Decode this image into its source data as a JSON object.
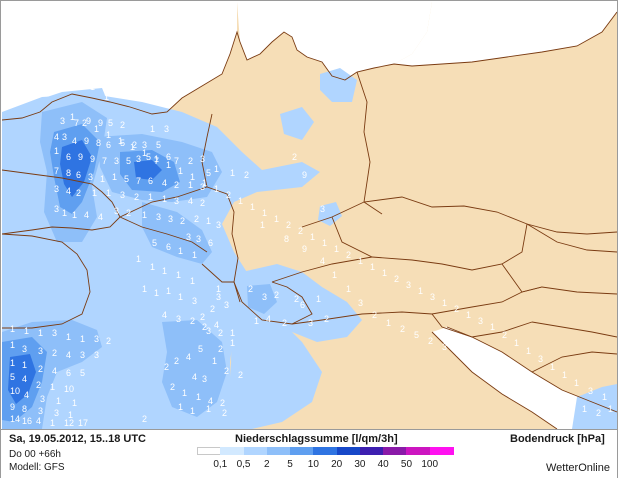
{
  "header": {
    "datetime": "Sa, 19.05.2012, 15..18 UTC",
    "run": "Do 00 +66h",
    "model": "Modell: GFS",
    "title": "Niederschlagssumme [l/qm/3h]",
    "right_title": "Bodendruck [hPa]",
    "brand": "WetterOnline"
  },
  "legend": {
    "values": [
      "0,1",
      "0,5",
      "2",
      "5",
      "10",
      "20",
      "30",
      "40",
      "50",
      "100"
    ],
    "colors": [
      "#ffffff",
      "#d2e9ff",
      "#b0d5ff",
      "#8ebff9",
      "#5f9ff0",
      "#2f74e2",
      "#1748c8",
      "#3d1fb0",
      "#8a1aa8",
      "#cc15c0",
      "#ff11f0"
    ]
  },
  "map": {
    "colors": {
      "land": "#f6deb7",
      "sea": "#ffffff",
      "border": "#7a3b12"
    },
    "values": [
      {
        "v": "1"
      },
      {
        "v": "1"
      },
      {
        "v": "3"
      },
      {
        "v": "7"
      },
      {
        "v": "9"
      },
      {
        "v": "9"
      },
      {
        "v": "5"
      },
      {
        "v": "2"
      },
      {
        "v": "1"
      },
      {
        "v": "3"
      },
      {
        "v": "4"
      },
      {
        "v": "3"
      },
      {
        "v": "4"
      },
      {
        "v": "9"
      },
      {
        "v": "8"
      },
      {
        "v": "6"
      },
      {
        "v": "5"
      },
      {
        "v": "2"
      },
      {
        "v": "3"
      },
      {
        "v": "5"
      },
      {
        "v": "1"
      },
      {
        "v": "6"
      },
      {
        "v": "9"
      },
      {
        "v": "9"
      },
      {
        "v": "7"
      },
      {
        "v": "3"
      },
      {
        "v": "5"
      },
      {
        "v": "3"
      },
      {
        "v": "5"
      },
      {
        "v": "7"
      },
      {
        "v": "6"
      },
      {
        "v": "7"
      },
      {
        "v": "2"
      },
      {
        "v": "3"
      },
      {
        "v": "7"
      },
      {
        "v": "8"
      },
      {
        "v": "6"
      },
      {
        "v": "3"
      },
      {
        "v": "1"
      },
      {
        "v": "1"
      },
      {
        "v": "5"
      },
      {
        "v": "7"
      },
      {
        "v": "6"
      },
      {
        "v": "4"
      },
      {
        "v": "2"
      },
      {
        "v": "1"
      },
      {
        "v": "3"
      },
      {
        "v": "3"
      },
      {
        "v": "4"
      },
      {
        "v": "2"
      },
      {
        "v": "1"
      },
      {
        "v": "1"
      },
      {
        "v": "3"
      },
      {
        "v": "2"
      },
      {
        "v": "1"
      },
      {
        "v": "1"
      },
      {
        "v": "3"
      },
      {
        "v": "4"
      },
      {
        "v": "2"
      },
      {
        "v": "3"
      },
      {
        "v": "1"
      },
      {
        "v": "1"
      },
      {
        "v": "4"
      },
      {
        "v": "4"
      },
      {
        "v": "3"
      },
      {
        "v": "2"
      },
      {
        "v": "1"
      },
      {
        "v": "3"
      },
      {
        "v": "3"
      },
      {
        "v": "2"
      },
      {
        "v": "2"
      },
      {
        "v": "1"
      },
      {
        "v": "3"
      },
      {
        "v": "1"
      },
      {
        "v": "2"
      },
      {
        "v": "2"
      },
      {
        "v": "5"
      },
      {
        "v": "1"
      },
      {
        "v": "3"
      },
      {
        "v": "3"
      },
      {
        "v": "6"
      },
      {
        "v": "5"
      },
      {
        "v": "6"
      },
      {
        "v": "1"
      },
      {
        "v": "1"
      },
      {
        "v": "1"
      },
      {
        "v": "1"
      },
      {
        "v": "1"
      },
      {
        "v": "1"
      },
      {
        "v": "1"
      },
      {
        "v": "1"
      },
      {
        "v": "1"
      },
      {
        "v": "1"
      },
      {
        "v": "1"
      },
      {
        "v": "3"
      },
      {
        "v": "1"
      },
      {
        "v": "3"
      },
      {
        "v": "2"
      },
      {
        "v": "3"
      },
      {
        "v": "2"
      },
      {
        "v": "2"
      },
      {
        "v": "6"
      },
      {
        "v": "1"
      },
      {
        "v": "2"
      },
      {
        "v": "3"
      },
      {
        "v": "2"
      },
      {
        "v": "1"
      },
      {
        "v": "4"
      },
      {
        "v": "3"
      },
      {
        "v": "2"
      },
      {
        "v": "1"
      },
      {
        "v": "2"
      },
      {
        "v": "2"
      },
      {
        "v": "3"
      },
      {
        "v": "4"
      },
      {
        "v": "3"
      },
      {
        "v": "2"
      },
      {
        "v": "2"
      },
      {
        "v": "4"
      },
      {
        "v": "1"
      },
      {
        "v": "2"
      },
      {
        "v": "5"
      },
      {
        "v": "4"
      },
      {
        "v": "2"
      },
      {
        "v": "2"
      },
      {
        "v": "1"
      },
      {
        "v": "2"
      },
      {
        "v": "2"
      },
      {
        "v": "4"
      },
      {
        "v": "3"
      },
      {
        "v": "2"
      },
      {
        "v": "1"
      },
      {
        "v": "1"
      },
      {
        "v": "4"
      },
      {
        "v": "2"
      },
      {
        "v": "1"
      },
      {
        "v": "1"
      },
      {
        "v": "1"
      },
      {
        "v": "2"
      },
      {
        "v": "2"
      },
      {
        "v": "1"
      },
      {
        "v": "1"
      },
      {
        "v": "1"
      },
      {
        "v": "3"
      },
      {
        "v": "1"
      },
      {
        "v": "1"
      },
      {
        "v": "3"
      },
      {
        "v": "2"
      },
      {
        "v": "1"
      },
      {
        "v": "3"
      },
      {
        "v": "3"
      },
      {
        "v": "2"
      },
      {
        "v": "4"
      },
      {
        "v": "3"
      },
      {
        "v": "3"
      },
      {
        "v": "1"
      },
      {
        "v": "1"
      },
      {
        "v": "2"
      },
      {
        "v": "4"
      },
      {
        "v": "6"
      },
      {
        "v": "5"
      },
      {
        "v": "5"
      },
      {
        "v": "4"
      },
      {
        "v": "2"
      },
      {
        "v": "1"
      },
      {
        "v": "10"
      },
      {
        "v": "10"
      },
      {
        "v": "4"
      },
      {
        "v": "3"
      },
      {
        "v": "1"
      },
      {
        "v": "1"
      },
      {
        "v": "9"
      },
      {
        "v": "8"
      },
      {
        "v": "3"
      },
      {
        "v": "3"
      },
      {
        "v": "1"
      },
      {
        "v": "14"
      },
      {
        "v": "16"
      },
      {
        "v": "4"
      },
      {
        "v": "1"
      },
      {
        "v": "12"
      },
      {
        "v": "17"
      },
      {
        "v": "9"
      },
      {
        "v": "3"
      },
      {
        "v": "1"
      },
      {
        "v": "8"
      },
      {
        "v": "9"
      },
      {
        "v": "4"
      },
      {
        "v": "1"
      },
      {
        "v": "1"
      },
      {
        "v": "3"
      },
      {
        "v": "2"
      },
      {
        "v": "1"
      },
      {
        "v": "2"
      },
      {
        "v": "5"
      },
      {
        "v": "2"
      },
      {
        "v": "3"
      },
      {
        "v": "2"
      },
      {
        "v": "2"
      },
      {
        "v": "1"
      },
      {
        "v": "1"
      },
      {
        "v": "2"
      },
      {
        "v": "4"
      },
      {
        "v": "3"
      },
      {
        "v": "2"
      },
      {
        "v": "2"
      },
      {
        "v": "1"
      },
      {
        "v": "2"
      },
      {
        "v": "1"
      },
      {
        "v": "1"
      },
      {
        "v": "3"
      },
      {
        "v": "1"
      },
      {
        "v": "1"
      },
      {
        "v": "1"
      },
      {
        "v": "3"
      },
      {
        "v": "1"
      },
      {
        "v": "1"
      },
      {
        "v": "2"
      },
      {
        "v": "1"
      },
      {
        "v": "3"
      },
      {
        "v": "1"
      },
      {
        "v": "2"
      },
      {
        "v": "1"
      },
      {
        "v": "3"
      },
      {
        "v": "1"
      },
      {
        "v": "3"
      },
      {
        "v": "2"
      },
      {
        "v": "1"
      },
      {
        "v": "1"
      },
      {
        "v": "1"
      },
      {
        "v": "2"
      },
      {
        "v": "1"
      },
      {
        "v": "1"
      },
      {
        "v": "1"
      },
      {
        "v": "2"
      },
      {
        "v": "2"
      },
      {
        "v": "1"
      },
      {
        "v": "1"
      },
      {
        "v": "1"
      },
      {
        "v": "1"
      },
      {
        "v": "2"
      },
      {
        "v": "1"
      },
      {
        "v": "1"
      },
      {
        "v": "1"
      },
      {
        "v": "1"
      },
      {
        "v": "1"
      },
      {
        "v": "1"
      },
      {
        "v": "1"
      },
      {
        "v": "1"
      },
      {
        "v": "1"
      },
      {
        "v": "1"
      },
      {
        "v": "1"
      },
      {
        "v": "2"
      },
      {
        "v": "1"
      }
    ]
  }
}
